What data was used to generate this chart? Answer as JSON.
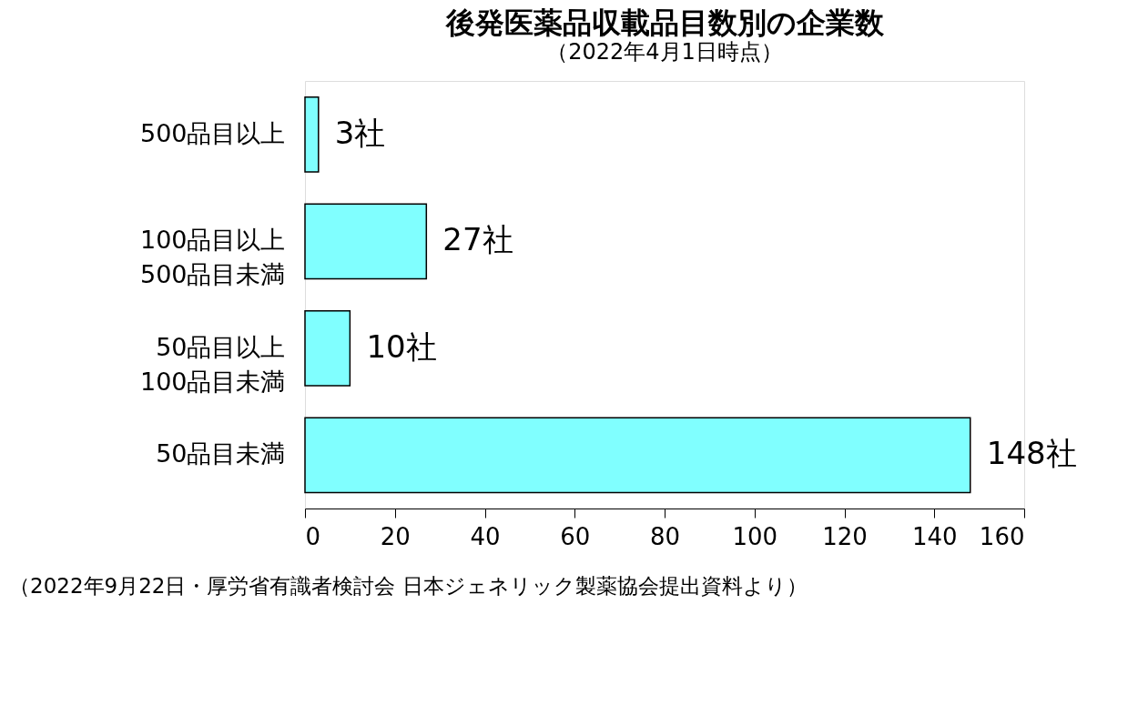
{
  "chart_data": {
    "type": "bar",
    "orientation": "horizontal",
    "title": "後発医薬品収載品目数別の企業数",
    "subtitle": "（2022年4月1日時点）",
    "categories": [
      "500品目以上",
      "100品目以上\n500品目未満",
      "50品目以上\n100品目未満",
      "50品目未満"
    ],
    "values": [
      3,
      27,
      10,
      148
    ],
    "color": "#80ffff",
    "value_labels": [
      "3社",
      "27社",
      "10社",
      "148社"
    ],
    "xlim": [
      0,
      160
    ],
    "xticks": [
      0,
      20,
      40,
      60,
      80,
      100,
      120,
      140,
      160
    ],
    "grid": false,
    "annotations": [
      "（2022年9月22日・厚労省有識者検討会 日本ジェネリック製薬協会提出資料より）"
    ]
  }
}
